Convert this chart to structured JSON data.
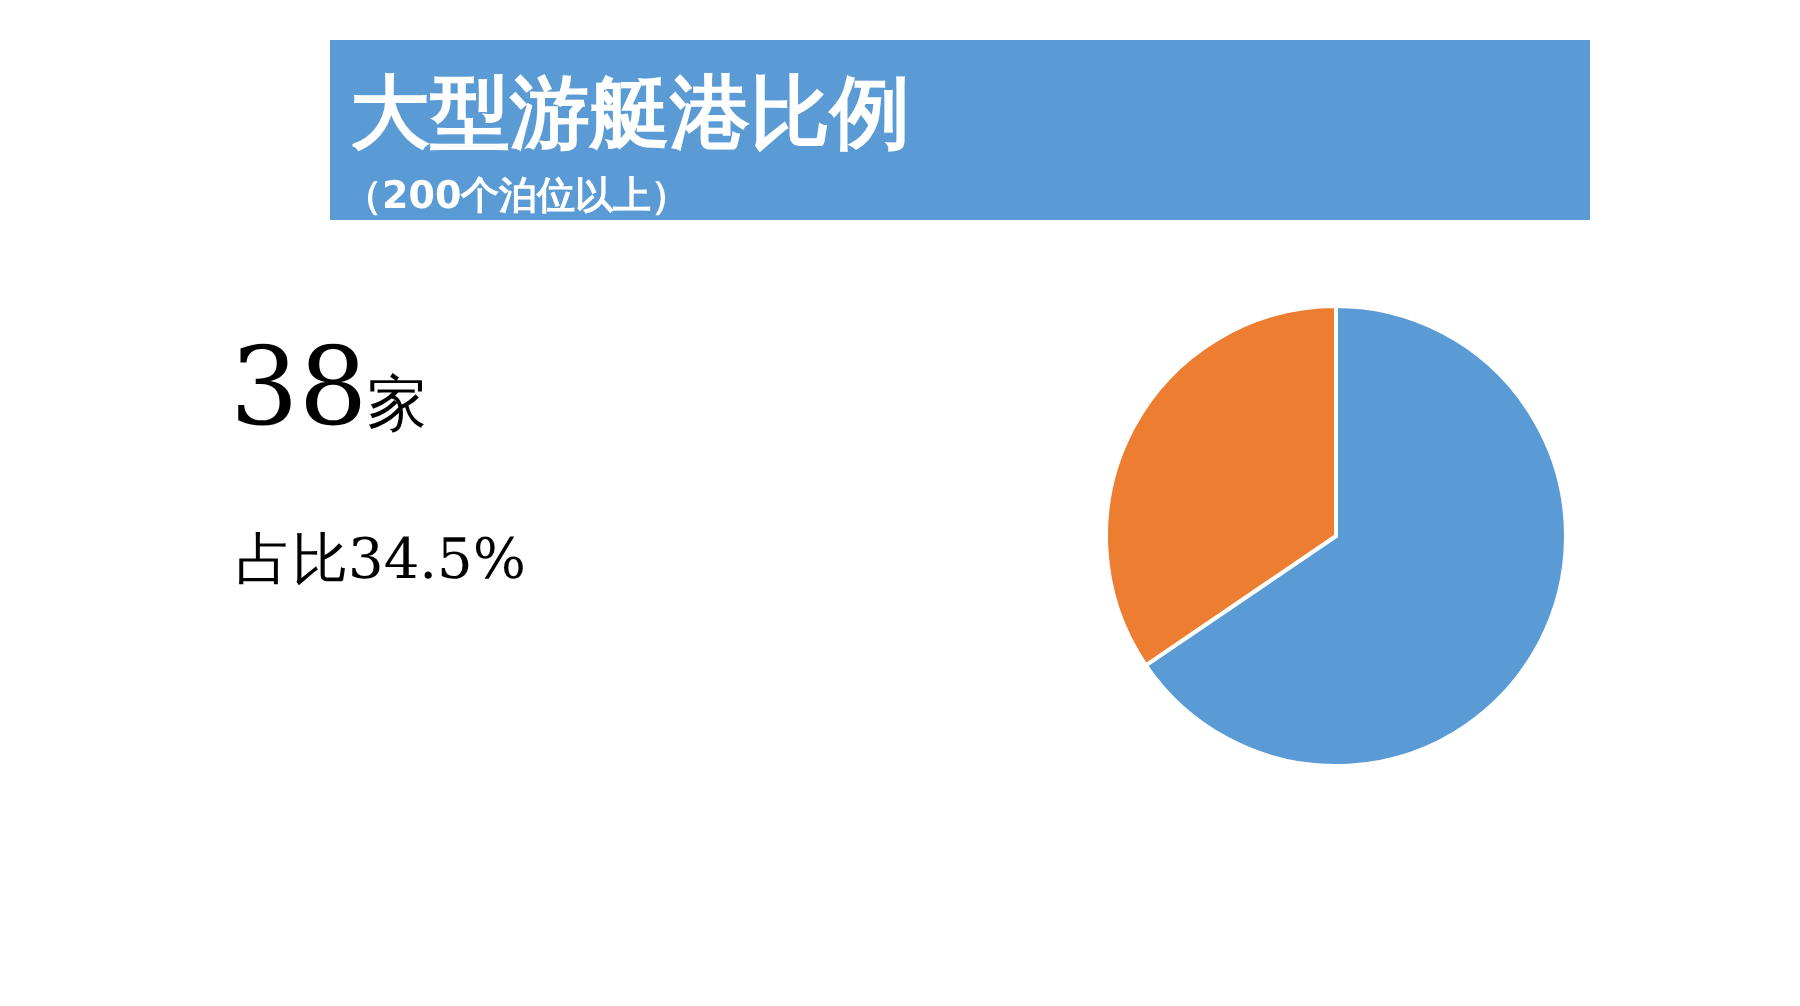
{
  "chart_data": {
    "type": "pie",
    "title": "大型游艇港比例",
    "subtitle": "（200个泊位以上）",
    "annotations": [
      "38家",
      "占比34.5%"
    ],
    "categories": [
      null,
      null
    ],
    "values": [
      65.5,
      34.5
    ],
    "colors": [
      "#5b9bd5",
      "#ed7d31"
    ]
  }
}
